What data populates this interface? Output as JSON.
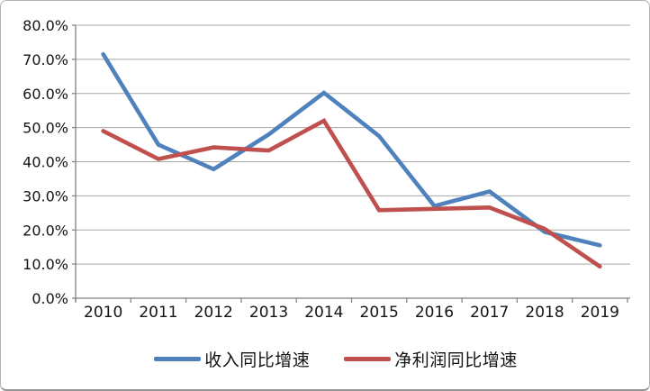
{
  "chart_data": {
    "type": "line",
    "title": "",
    "xlabel": "",
    "ylabel": "",
    "categories": [
      "2010",
      "2011",
      "2012",
      "2013",
      "2014",
      "2015",
      "2016",
      "2017",
      "2018",
      "2019"
    ],
    "series": [
      {
        "name": "收入同比增速",
        "color": "#4F81BD",
        "values": [
          71.5,
          45.0,
          37.8,
          48.0,
          60.2,
          47.5,
          27.0,
          31.3,
          19.4,
          15.5
        ]
      },
      {
        "name": "净利润同比增速",
        "color": "#C0504D",
        "values": [
          49.0,
          40.8,
          44.2,
          43.3,
          52.0,
          25.8,
          26.2,
          26.6,
          20.3,
          9.3
        ]
      }
    ],
    "y_axis": {
      "min": 0,
      "max": 80,
      "tick_step": 10,
      "tick_labels_top_to_bottom": [
        "80.0%",
        "70.0%",
        "60.0%",
        "50.0%",
        "40.0%",
        "30.0%",
        "20.0%",
        "10.0%",
        "0.0%"
      ]
    },
    "ylim": [
      0,
      80
    ],
    "grid": "horizontal",
    "legend_position": "bottom",
    "colors": {
      "background": "#ffffff",
      "gridline": "#a8a8a8",
      "axis": "#7f7f7f",
      "text": "#141414",
      "frame_border": "#b3b3b3"
    }
  }
}
